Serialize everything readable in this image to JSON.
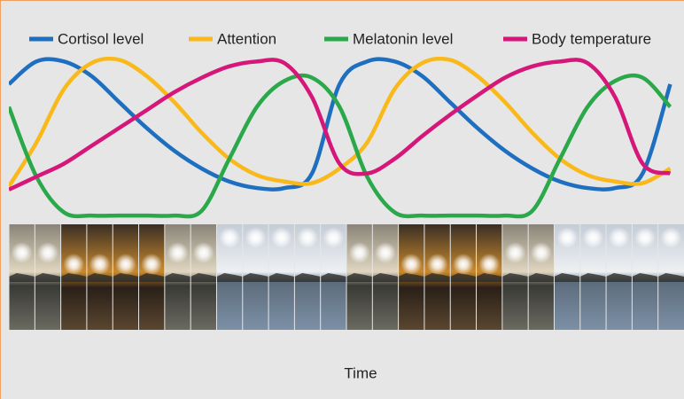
{
  "chart_data": {
    "type": "line",
    "x_label": "Time",
    "x": [
      5,
      7,
      9,
      11,
      13,
      15,
      17,
      19,
      21,
      23,
      25,
      27,
      29,
      31,
      33,
      35,
      37,
      39,
      41,
      43,
      45,
      47,
      49,
      51,
      53
    ],
    "xlim": [
      5,
      54
    ],
    "xticks": [
      6,
      12,
      18,
      24,
      {
        "value": 30,
        "label": "6"
      },
      {
        "value": 36,
        "label": "12"
      },
      {
        "value": 42,
        "label": "18"
      },
      {
        "value": 48,
        "label": "24"
      },
      {
        "value": 54,
        "label": "6"
      }
    ],
    "ylim": [
      0,
      100
    ],
    "series": [
      {
        "name": "Cortisol level",
        "color": "#1f6fc0",
        "values": [
          82,
          96,
          96,
          87,
          71,
          55,
          41,
          30,
          22,
          18,
          18,
          27,
          82,
          96,
          96,
          87,
          71,
          55,
          41,
          30,
          22,
          18,
          18,
          27,
          82
        ]
      },
      {
        "name": "Attention",
        "color": "#f9b91a",
        "values": [
          19,
          46,
          79,
          95,
          97,
          87,
          71,
          52,
          36,
          26,
          22,
          21,
          30,
          46,
          79,
          95,
          97,
          87,
          71,
          52,
          36,
          26,
          22,
          21,
          30
        ]
      },
      {
        "name": "Melatonin level",
        "color": "#2aa84a",
        "values": [
          68,
          25,
          3,
          1,
          1,
          1,
          1,
          4,
          36,
          68,
          84,
          86,
          68,
          25,
          3,
          1,
          1,
          1,
          1,
          4,
          36,
          68,
          84,
          86,
          68
        ]
      },
      {
        "name": "Body temperature",
        "color": "#d6177a",
        "values": [
          17,
          25,
          33,
          44,
          55,
          66,
          77,
          86,
          93,
          96,
          95,
          74,
          33,
          27,
          36,
          50,
          63,
          75,
          86,
          93,
          96,
          95,
          74,
          33,
          27
        ]
      }
    ]
  }
}
